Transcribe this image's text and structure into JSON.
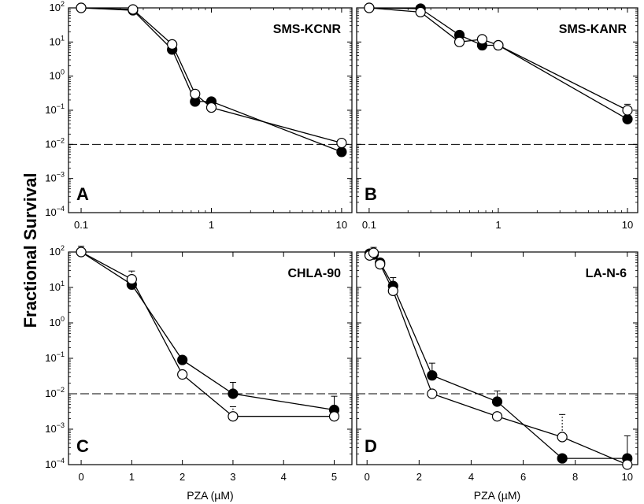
{
  "figure": {
    "ylabel": "Fractional Survival",
    "threshold": 0.01
  },
  "chart_data": [
    {
      "panel": "A",
      "cell_line": "SMS-KCNR",
      "type": "line",
      "x_scale": "log",
      "y_scale": "log",
      "xlim": [
        0.08,
        12
      ],
      "ylim": [
        0.0001,
        100
      ],
      "x_ticks": [
        0.1,
        1,
        10
      ],
      "x_tick_labels": [
        "0.1",
        "1",
        "10"
      ],
      "xlabel": "",
      "series": [
        {
          "marker": "filled",
          "x": [
            0.1,
            0.25,
            0.5,
            0.75,
            1,
            10
          ],
          "y": [
            100,
            85,
            6,
            0.18,
            0.18,
            0.006
          ],
          "err": [
            0,
            0,
            0,
            0,
            0,
            0.004
          ]
        },
        {
          "marker": "open",
          "x": [
            0.1,
            0.25,
            0.5,
            0.75,
            1,
            10
          ],
          "y": [
            100,
            90,
            8.5,
            0.3,
            0.12,
            0.011
          ],
          "err": [
            0,
            0,
            0,
            0,
            0,
            0.002
          ]
        }
      ]
    },
    {
      "panel": "B",
      "cell_line": "SMS-KANR",
      "type": "line",
      "x_scale": "log",
      "y_scale": "log",
      "xlim": [
        0.08,
        12
      ],
      "ylim": [
        0.0001,
        100
      ],
      "x_ticks": [
        0.1,
        1,
        10
      ],
      "x_tick_labels": [
        "0.1",
        "1",
        "10"
      ],
      "xlabel": "",
      "series": [
        {
          "marker": "filled",
          "x": [
            0.1,
            0.25,
            0.5,
            0.75,
            1,
            10
          ],
          "y": [
            100,
            95,
            16,
            8,
            8,
            0.055
          ],
          "err": [
            0,
            0,
            0,
            3,
            0,
            0.015
          ]
        },
        {
          "marker": "open",
          "x": [
            0.1,
            0.25,
            0.5,
            0.75,
            1,
            10
          ],
          "y": [
            100,
            75,
            10,
            12,
            8,
            0.1
          ],
          "err": [
            0,
            0,
            4,
            0,
            0,
            0.05
          ]
        }
      ]
    },
    {
      "panel": "C",
      "cell_line": "CHLA-90",
      "type": "line",
      "x_scale": "linear",
      "y_scale": "log",
      "xlim": [
        -0.25,
        5.35
      ],
      "ylim": [
        0.0001,
        100
      ],
      "x_ticks": [
        0,
        1,
        2,
        3,
        4,
        5
      ],
      "x_tick_labels": [
        "0",
        "1",
        "2",
        "3",
        "4",
        "5"
      ],
      "xlabel": "PZA (µM)",
      "series": [
        {
          "marker": "filled",
          "x": [
            0,
            1,
            2,
            3,
            5
          ],
          "y": [
            100,
            12,
            0.09,
            0.01,
            0.0035
          ],
          "err": [
            0,
            6,
            0,
            0.011,
            0.005
          ]
        },
        {
          "marker": "open",
          "x": [
            0,
            1,
            2,
            3,
            5
          ],
          "y": [
            100,
            17,
            0.035,
            0.0023,
            0.0023
          ],
          "err": [
            45,
            12,
            0,
            0.002,
            0
          ]
        }
      ]
    },
    {
      "panel": "D",
      "cell_line": "LA-N-6",
      "type": "line",
      "x_scale": "linear",
      "y_scale": "log",
      "xlim": [
        -0.4,
        10.4
      ],
      "ylim": [
        0.0001,
        100
      ],
      "x_ticks": [
        0,
        2,
        4,
        6,
        8,
        10
      ],
      "x_tick_labels": [
        "0",
        "2",
        "4",
        "6",
        "8",
        "10"
      ],
      "xlabel": "PZA (µM)",
      "series": [
        {
          "marker": "filled",
          "x": [
            0.1,
            0.25,
            0.5,
            1,
            2.5,
            5,
            7.5,
            10
          ],
          "y": [
            90,
            85,
            50,
            11,
            0.033,
            0.006,
            0.00015,
            0.00015
          ],
          "err": [
            0,
            0,
            0,
            8,
            0.04,
            0.006,
            0,
            0.0005
          ]
        },
        {
          "marker": "open",
          "x": [
            0.1,
            0.25,
            0.5,
            1,
            2.5,
            5,
            7.5,
            10
          ],
          "y": [
            80,
            95,
            45,
            8,
            0.01,
            0.0023,
            0.0006,
            0.0001
          ],
          "err": [
            0,
            40,
            20,
            6,
            0,
            0,
            0.002,
            0
          ]
        }
      ]
    }
  ]
}
